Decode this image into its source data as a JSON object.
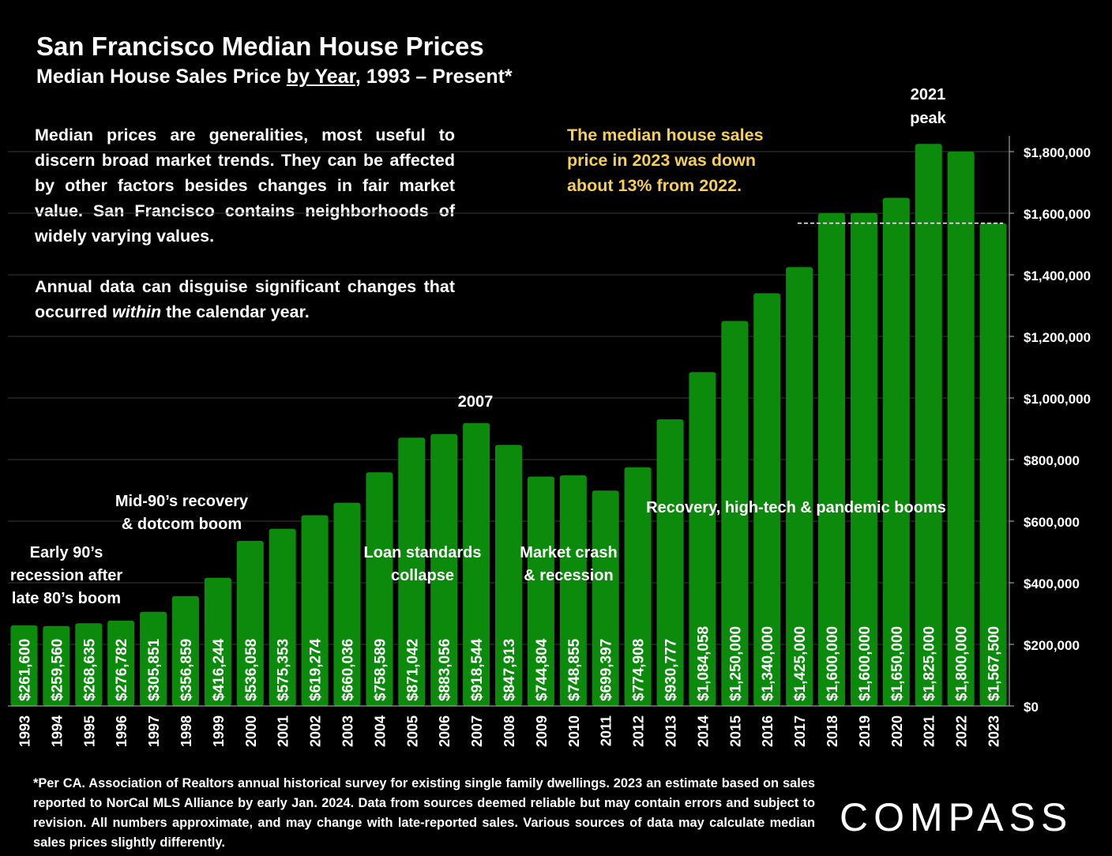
{
  "header": {
    "title": "San Francisco Median House Prices",
    "subtitle_pre": "Median House Sales Price ",
    "subtitle_ul": "by Year",
    "subtitle_post": ", 1993 – Present*"
  },
  "note": {
    "p1": "Median prices are generalities, most useful to discern broad market trends. They can be affected by other factors besides changes in fair market value. San Francisco contains neighborhoods of widely varying values.",
    "p2_pre": "Annual data can disguise significant changes that occurred ",
    "p2_em": "within",
    "p2_post": " the calendar year."
  },
  "callout": "The median house sales price in 2023 was down about 13% from 2022.",
  "peak_label": [
    "2021",
    "peak"
  ],
  "footnote": "*Per CA. Association of Realtors annual historical survey for existing single family dwellings. 2023 an estimate based on sales reported to NorCal MLS Alliance by early Jan. 2024. Data from sources deemed reliable but may contain errors and subject to revision. All numbers approximate, and may change with late-reported sales. Various sources of data may calculate median sales prices slightly differently.",
  "logo": "COMPASS",
  "colors": {
    "bar": "#0b8a0b",
    "background": "#000000",
    "callout_text": "#f6cf55",
    "text": "#ffffff"
  },
  "chart_data": {
    "type": "bar",
    "categories": [
      "1993",
      "1994",
      "1995",
      "1996",
      "1997",
      "1998",
      "1999",
      "2000",
      "2001",
      "2002",
      "2003",
      "2004",
      "2005",
      "2006",
      "2007",
      "2008",
      "2009",
      "2010",
      "2011",
      "2012",
      "2013",
      "2014",
      "2015",
      "2016",
      "2017",
      "2018",
      "2019",
      "2020",
      "2021",
      "2022",
      "2023"
    ],
    "values": [
      261600,
      259560,
      268635,
      276782,
      305851,
      356859,
      416244,
      536058,
      575353,
      619274,
      660036,
      758589,
      871042,
      883056,
      918544,
      847913,
      744804,
      748855,
      699397,
      774908,
      930777,
      1084058,
      1250000,
      1340000,
      1425000,
      1600000,
      1600000,
      1650000,
      1825000,
      1800000,
      1567500
    ],
    "value_labels": [
      "$261,600",
      "$259,560",
      "$268,635",
      "$276,782",
      "$305,851",
      "$356,859",
      "$416,244",
      "$536,058",
      "$575,353",
      "$619,274",
      "$660,036",
      "$758,589",
      "$871,042",
      "$883,056",
      "$918,544",
      "$847,913",
      "$744,804",
      "$748,855",
      "$699,397",
      "$774,908",
      "$930,777",
      "$1,084,058",
      "$1,250,000",
      "$1,340,000",
      "$1,425,000",
      "$1,600,000",
      "$1,600,000",
      "$1,650,000",
      "$1,825,000",
      "$1,800,000",
      "$1,567,500"
    ],
    "ylim": [
      0,
      1800000
    ],
    "yticks": [
      0,
      200000,
      400000,
      600000,
      800000,
      1000000,
      1200000,
      1400000,
      1600000,
      1800000
    ],
    "ytick_labels": [
      "$0",
      "$200,000",
      "$400,000",
      "$600,000",
      "$800,000",
      "$1,000,000",
      "$1,200,000",
      "$1,400,000",
      "$1,600,000",
      "$1,800,000"
    ],
    "y_axis_side": "right",
    "grid": true,
    "reference_line": {
      "value": 1567500,
      "style": "dashed"
    },
    "annotations": [
      {
        "text": [
          "Early 90’s",
          "recession after",
          "late 80’s boom"
        ],
        "near": "1993-1996"
      },
      {
        "text": [
          "Mid-90’s recovery",
          "& dotcom boom"
        ],
        "near": "1997-2001"
      },
      {
        "text": [
          "2007"
        ],
        "near": "2007"
      },
      {
        "text": [
          "Loan standards",
          "collapse"
        ],
        "near": "2004-2007"
      },
      {
        "text": [
          "Market crash",
          "& recession"
        ],
        "near": "2008-2011"
      },
      {
        "text": [
          "Recovery, high-tech & pandemic booms"
        ],
        "near": "2012-2022"
      }
    ]
  }
}
